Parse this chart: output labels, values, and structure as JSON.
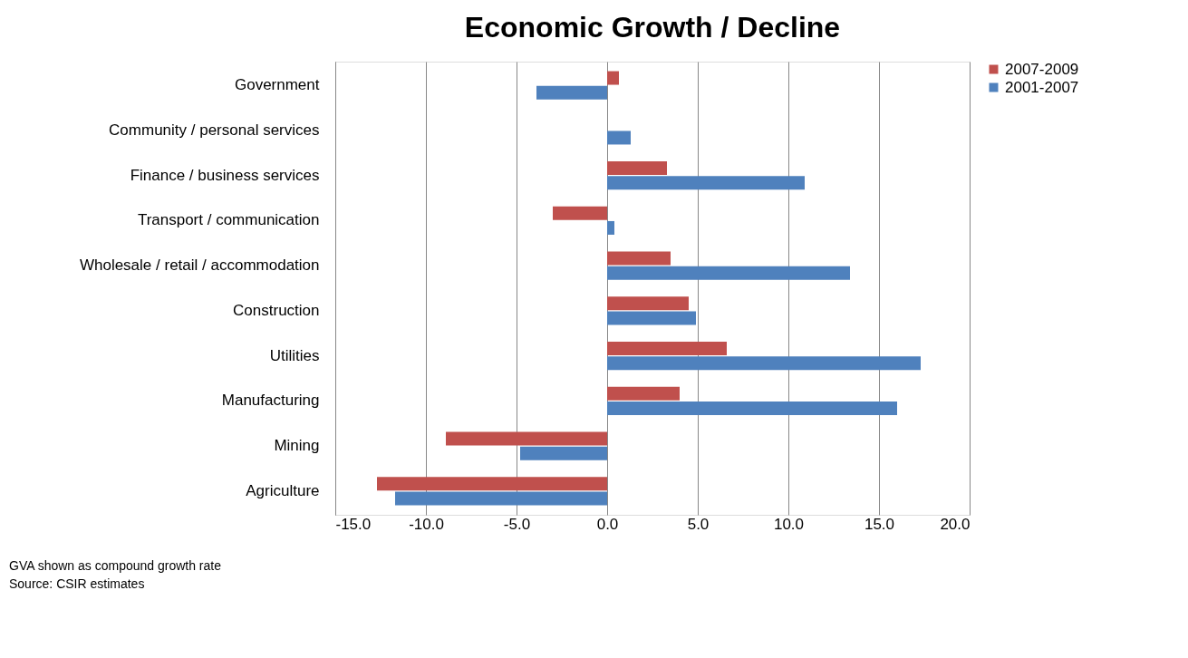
{
  "chart_data": {
    "type": "bar",
    "orientation": "horizontal",
    "title": "Economic Growth / Decline",
    "categories": [
      "Government",
      "Community / personal services",
      "Finance / business services",
      "Transport / communication",
      "Wholesale / retail / accommodation",
      "Construction",
      "Utilities",
      "Manufacturing",
      "Mining",
      "Agriculture"
    ],
    "series": [
      {
        "name": "2007-2009",
        "color": "#c0504d",
        "values": [
          0.65,
          0,
          3.3,
          -3.0,
          3.5,
          4.5,
          6.6,
          4.0,
          -8.9,
          -12.7
        ]
      },
      {
        "name": "2001-2007",
        "color": "#4f81bd",
        "values": [
          -3.9,
          1.3,
          10.9,
          0.4,
          13.4,
          4.9,
          17.3,
          16.0,
          -4.8,
          -11.7
        ]
      }
    ],
    "xlim": [
      -15,
      20
    ],
    "xticks": [
      {
        "value": -15,
        "label": "-15.0"
      },
      {
        "value": -10,
        "label": "-10.0"
      },
      {
        "value": -5,
        "label": "-5.0"
      },
      {
        "value": 0,
        "label": "0.0"
      },
      {
        "value": 5,
        "label": "5.0"
      },
      {
        "value": 10,
        "label": "10.0"
      },
      {
        "value": 15,
        "label": "15.0"
      },
      {
        "value": 20,
        "label": "20.0"
      }
    ],
    "grid": "x",
    "legend": "right",
    "annotations": [
      "GVA shown as compound growth rate",
      "Source: CSIR estimates"
    ]
  }
}
